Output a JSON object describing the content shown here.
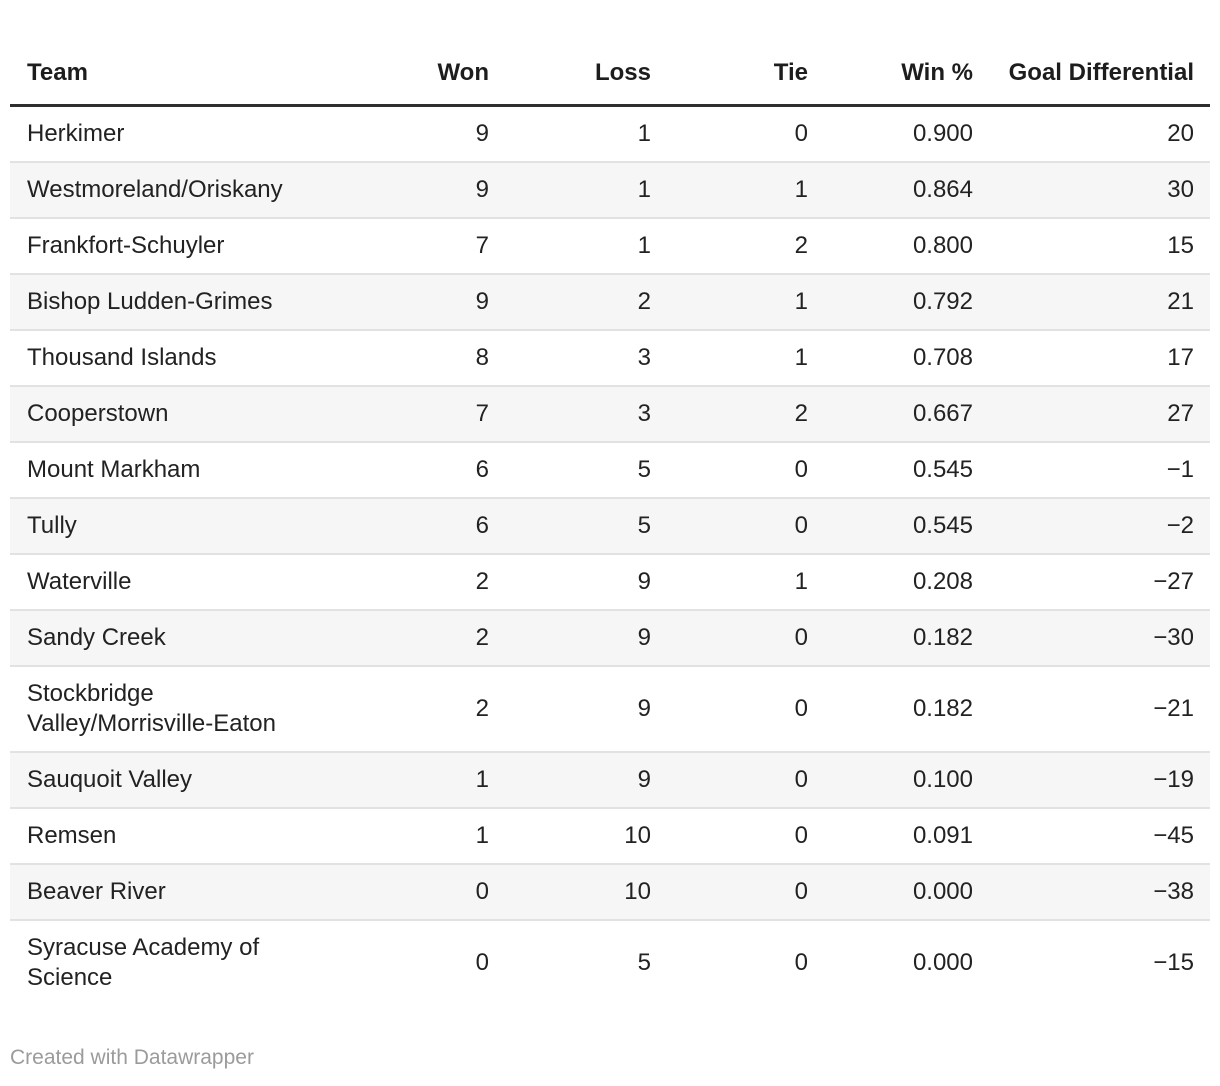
{
  "chart_data": {
    "type": "table",
    "columns": [
      "Team",
      "Won",
      "Loss",
      "Tie",
      "Win %",
      "Goal Differential"
    ],
    "rows": [
      [
        "Herkimer",
        "9",
        "1",
        "0",
        "0.900",
        "20"
      ],
      [
        "Westmoreland/Oriskany",
        "9",
        "1",
        "1",
        "0.864",
        "30"
      ],
      [
        "Frankfort-Schuyler",
        "7",
        "1",
        "2",
        "0.800",
        "15"
      ],
      [
        "Bishop Ludden-Grimes",
        "9",
        "2",
        "1",
        "0.792",
        "21"
      ],
      [
        "Thousand Islands",
        "8",
        "3",
        "1",
        "0.708",
        "17"
      ],
      [
        "Cooperstown",
        "7",
        "3",
        "2",
        "0.667",
        "27"
      ],
      [
        "Mount Markham",
        "6",
        "5",
        "0",
        "0.545",
        "−1"
      ],
      [
        "Tully",
        "6",
        "5",
        "0",
        "0.545",
        "−2"
      ],
      [
        "Waterville",
        "2",
        "9",
        "1",
        "0.208",
        "−27"
      ],
      [
        "Sandy Creek",
        "2",
        "9",
        "0",
        "0.182",
        "−30"
      ],
      [
        "Stockbridge Valley/Morrisville-Eaton",
        "2",
        "9",
        "0",
        "0.182",
        "−21"
      ],
      [
        "Sauquoit Valley",
        "1",
        "9",
        "0",
        "0.100",
        "−19"
      ],
      [
        "Remsen",
        "1",
        "10",
        "0",
        "0.091",
        "−45"
      ],
      [
        "Beaver River",
        "0",
        "10",
        "0",
        "0.000",
        "−38"
      ],
      [
        "Syracuse Academy of Science",
        "0",
        "5",
        "0",
        "0.000",
        "−15"
      ]
    ]
  },
  "table": {
    "columns": [
      {
        "key": "team",
        "label": "Team",
        "align": "left"
      },
      {
        "key": "won",
        "label": "Won",
        "align": "right"
      },
      {
        "key": "loss",
        "label": "Loss",
        "align": "right"
      },
      {
        "key": "tie",
        "label": "Tie",
        "align": "right"
      },
      {
        "key": "win-pct",
        "label": "Win %",
        "align": "right"
      },
      {
        "key": "goal-differential",
        "label": "Goal Differential",
        "align": "right"
      }
    ],
    "rows": [
      [
        "Herkimer",
        "9",
        "1",
        "0",
        "0.900",
        "20"
      ],
      [
        "Westmoreland/Oriskany",
        "9",
        "1",
        "1",
        "0.864",
        "30"
      ],
      [
        "Frankfort-Schuyler",
        "7",
        "1",
        "2",
        "0.800",
        "15"
      ],
      [
        "Bishop Ludden-Grimes",
        "9",
        "2",
        "1",
        "0.792",
        "21"
      ],
      [
        "Thousand Islands",
        "8",
        "3",
        "1",
        "0.708",
        "17"
      ],
      [
        "Cooperstown",
        "7",
        "3",
        "2",
        "0.667",
        "27"
      ],
      [
        "Mount Markham",
        "6",
        "5",
        "0",
        "0.545",
        "−1"
      ],
      [
        "Tully",
        "6",
        "5",
        "0",
        "0.545",
        "−2"
      ],
      [
        "Waterville",
        "2",
        "9",
        "1",
        "0.208",
        "−27"
      ],
      [
        "Sandy Creek",
        "2",
        "9",
        "0",
        "0.182",
        "−30"
      ],
      [
        "Stockbridge Valley/Morrisville-Eaton",
        "2",
        "9",
        "0",
        "0.182",
        "−21"
      ],
      [
        "Sauquoit Valley",
        "1",
        "9",
        "0",
        "0.100",
        "−19"
      ],
      [
        "Remsen",
        "1",
        "10",
        "0",
        "0.091",
        "−45"
      ],
      [
        "Beaver River",
        "0",
        "10",
        "0",
        "0.000",
        "−38"
      ],
      [
        "Syracuse Academy of Science",
        "0",
        "5",
        "0",
        "0.000",
        "−15"
      ]
    ]
  },
  "footer": {
    "credit": "Created with Datawrapper"
  },
  "colors": {
    "text": "#1d1d1d",
    "stripe": "#f6f6f6",
    "header_border": "#2e2e2e",
    "row_border": "#e2e2e2",
    "credit_text": "#9b9b9b",
    "background": "#ffffff"
  }
}
